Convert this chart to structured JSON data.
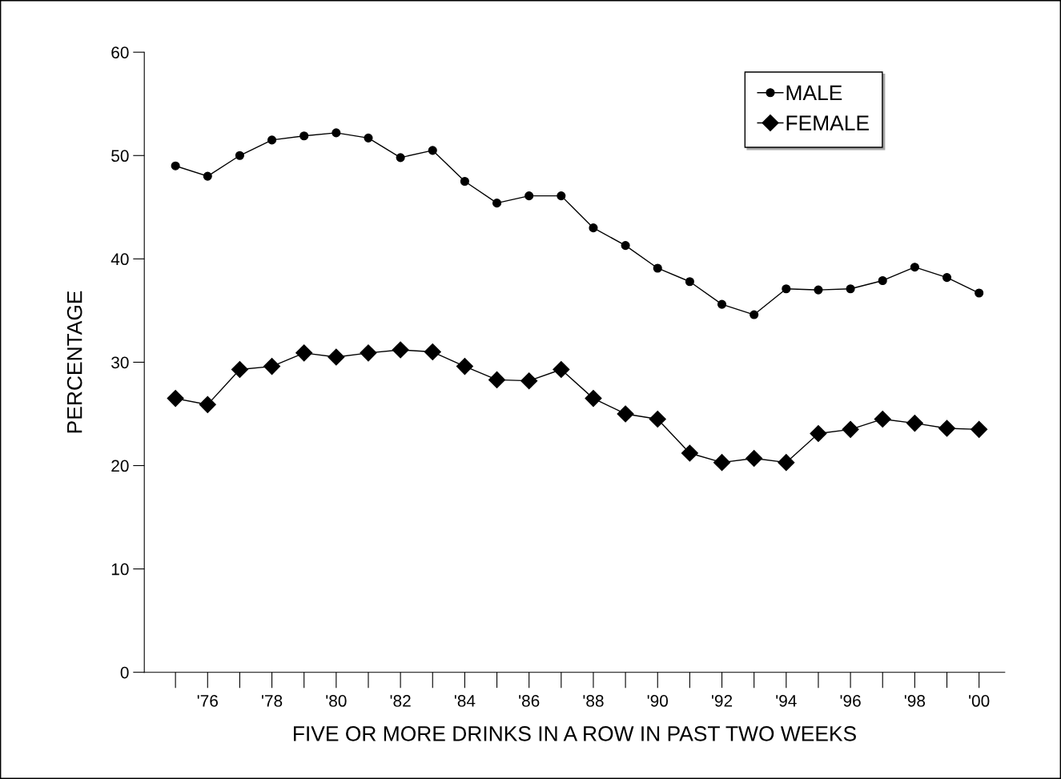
{
  "chart_data": {
    "type": "line",
    "xlabel": "FIVE OR MORE DRINKS IN A ROW IN PAST TWO WEEKS",
    "ylabel": "PERCENTAGE",
    "categories": [
      null,
      "'76",
      null,
      "'78",
      null,
      "'80",
      null,
      "'82",
      null,
      "'84",
      null,
      "'86",
      null,
      "'88",
      null,
      "'90",
      null,
      "'92",
      null,
      "'94",
      null,
      "'96",
      null,
      "'98",
      null,
      "'00"
    ],
    "series": [
      {
        "name": "MALE",
        "color": "#000000",
        "marker": "circle",
        "values": [
          49.0,
          48.0,
          50.0,
          51.5,
          51.9,
          52.2,
          51.7,
          49.8,
          50.5,
          47.5,
          45.4,
          46.1,
          46.1,
          43.0,
          41.3,
          39.1,
          37.8,
          35.6,
          34.6,
          37.1,
          37.0,
          37.1,
          37.9,
          39.2,
          38.2,
          36.7
        ]
      },
      {
        "name": "FEMALE",
        "color": "#000000",
        "marker": "diamond",
        "values": [
          26.5,
          25.9,
          29.3,
          29.6,
          30.9,
          30.5,
          30.9,
          31.2,
          31.0,
          29.6,
          28.3,
          28.2,
          29.3,
          26.5,
          25.0,
          24.5,
          21.2,
          20.3,
          20.7,
          20.3,
          23.1,
          23.5,
          24.5,
          24.1,
          23.6,
          23.5
        ]
      }
    ],
    "ylim": [
      0,
      60
    ],
    "yticks": [
      0,
      10,
      20,
      30,
      40,
      50,
      60
    ],
    "grid": false,
    "legend": "top right",
    "line_style": "solid"
  }
}
